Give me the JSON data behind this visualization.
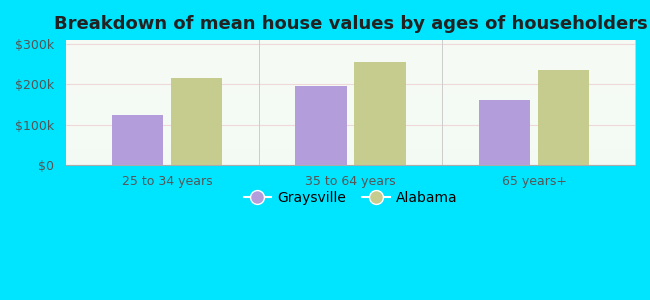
{
  "title": "Breakdown of mean house values by ages of householders",
  "categories": [
    "25 to 34 years",
    "35 to 64 years",
    "65 years+"
  ],
  "graysville": [
    125000,
    195000,
    162000
  ],
  "alabama": [
    215000,
    255000,
    237000
  ],
  "graysville_color": "#b39ddb",
  "alabama_color": "#c5cc8e",
  "background_outer": "#00e5ff",
  "background_inner_top": "#e8f5e2",
  "background_inner_bottom": "#f5fff0",
  "yticks": [
    0,
    100000,
    200000,
    300000
  ],
  "ytick_labels": [
    "$0",
    "$100k",
    "$200k",
    "$300k"
  ],
  "ylim": [
    0,
    310000
  ],
  "legend_graysville": "Graysville",
  "legend_alabama": "Alabama",
  "bar_width": 0.28,
  "title_fontsize": 13,
  "tick_fontsize": 9,
  "legend_fontsize": 10
}
